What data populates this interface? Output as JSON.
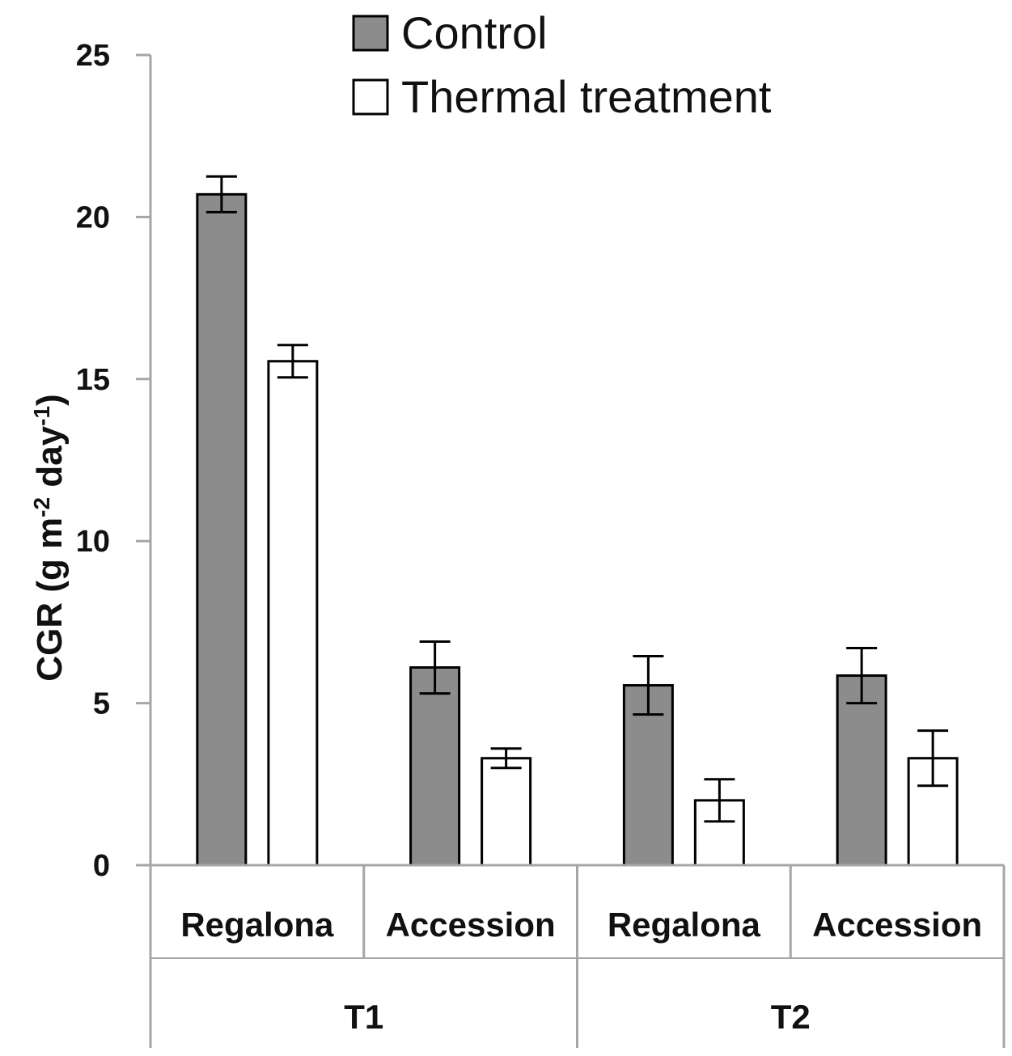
{
  "chart_data": {
    "type": "bar",
    "ylabel": "CGR (g m",
    "ylabel_sup1": "-2",
    "ylabel_mid": " day",
    "ylabel_sup2": "-1",
    "ylabel_end": ")",
    "ylim": [
      0,
      25
    ],
    "yticks": [
      "0",
      "5",
      "10",
      "15",
      "20",
      "25"
    ],
    "ytick_values": [
      0,
      5,
      10,
      15,
      20,
      25
    ],
    "categories": [
      "Regalona",
      "Accession",
      "Regalona",
      "Accession"
    ],
    "groups": [
      {
        "label": "T1",
        "categories": [
          0,
          1
        ]
      },
      {
        "label": "T2",
        "categories": [
          2,
          3
        ]
      }
    ],
    "series": [
      {
        "name": "Control",
        "color": "#8c8c8c",
        "values": [
          20.7,
          6.1,
          5.55,
          5.85
        ],
        "errors": [
          0.55,
          0.8,
          0.9,
          0.85
        ]
      },
      {
        "name": "Thermal treatment",
        "color": "#ffffff",
        "values": [
          15.55,
          3.3,
          2.0,
          3.3
        ],
        "errors": [
          0.5,
          0.3,
          0.65,
          0.85
        ]
      }
    ],
    "legend_position": "top-right",
    "grid": false
  }
}
